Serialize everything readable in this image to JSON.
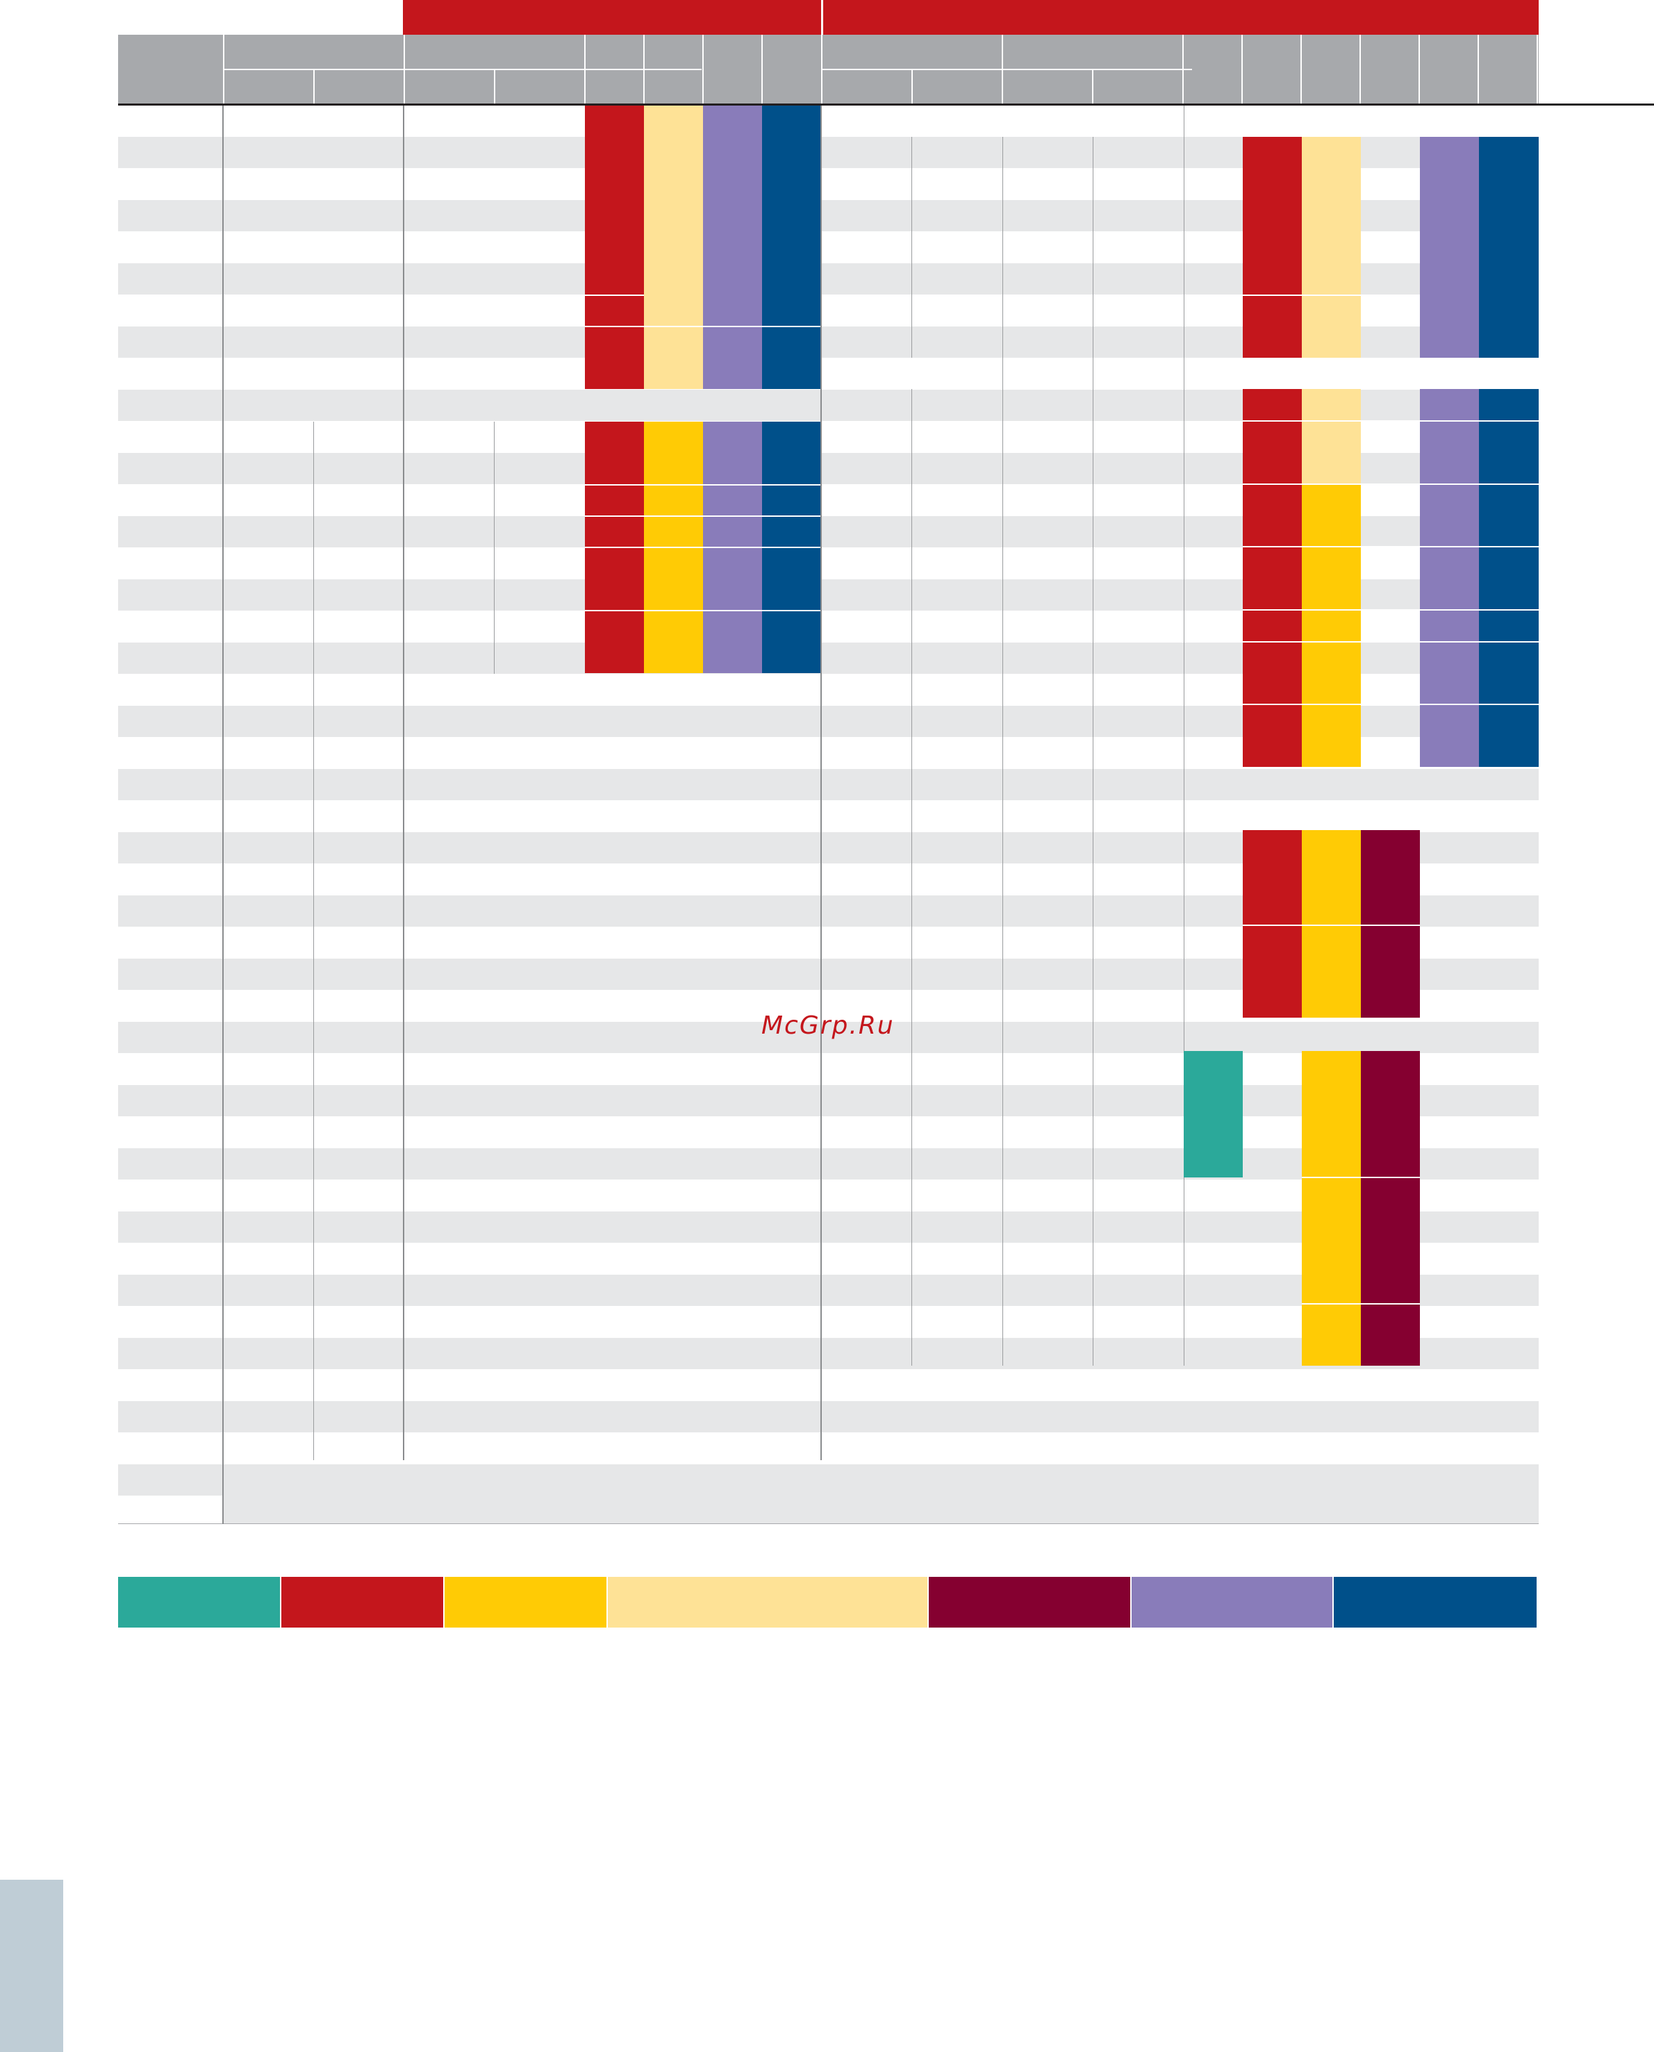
{
  "watermark": {
    "text": "McGrp.Ru"
  },
  "colors": {
    "group_band": "#c4161c",
    "header_gray": "#a7a9ac",
    "stripe_gray": "#e6e7e8",
    "teal": "#2ba99a",
    "red": "#c4161c",
    "yellow": "#ffcb05",
    "light_yellow": "#fee296",
    "maroon": "#850030",
    "lavender": "#897cba",
    "navy": "#00508a",
    "side_tab": "#bfcdd6"
  },
  "legend": {
    "swatches": [
      {
        "name": "teal",
        "color": "#2ba99a"
      },
      {
        "name": "red",
        "color": "#c4161c"
      },
      {
        "name": "yellow",
        "color": "#ffcb05"
      },
      {
        "name": "light-yellow",
        "color": "#fee296"
      },
      {
        "name": "maroon",
        "color": "#850030"
      },
      {
        "name": "lavender",
        "color": "#897cba"
      },
      {
        "name": "navy",
        "color": "#00508a"
      }
    ]
  }
}
